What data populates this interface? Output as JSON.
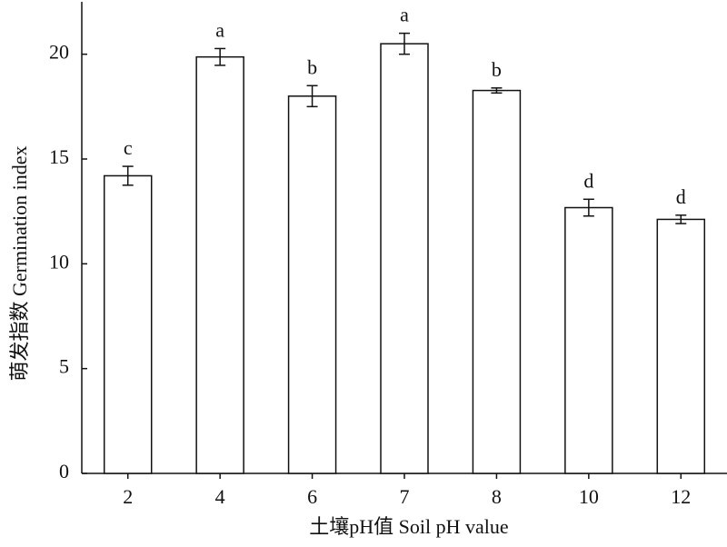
{
  "chart_data": {
    "type": "bar",
    "x_label": "土壤pH值 Soil pH value",
    "y_label": "萌发指数 Germination index",
    "categories": [
      "2",
      "4",
      "6",
      "7",
      "8",
      "10",
      "12"
    ],
    "values": [
      14.2,
      19.87,
      18.0,
      20.5,
      18.27,
      12.68,
      12.12
    ],
    "errors": [
      0.45,
      0.4,
      0.5,
      0.5,
      0.12,
      0.4,
      0.2
    ],
    "significance_letters": [
      "c",
      "a",
      "b",
      "a",
      "b",
      "d",
      "d"
    ],
    "color": "#ffffff",
    "ylim": [
      0,
      22.5
    ],
    "yticks": [
      0,
      5,
      10,
      15,
      20
    ],
    "grid": false
  }
}
